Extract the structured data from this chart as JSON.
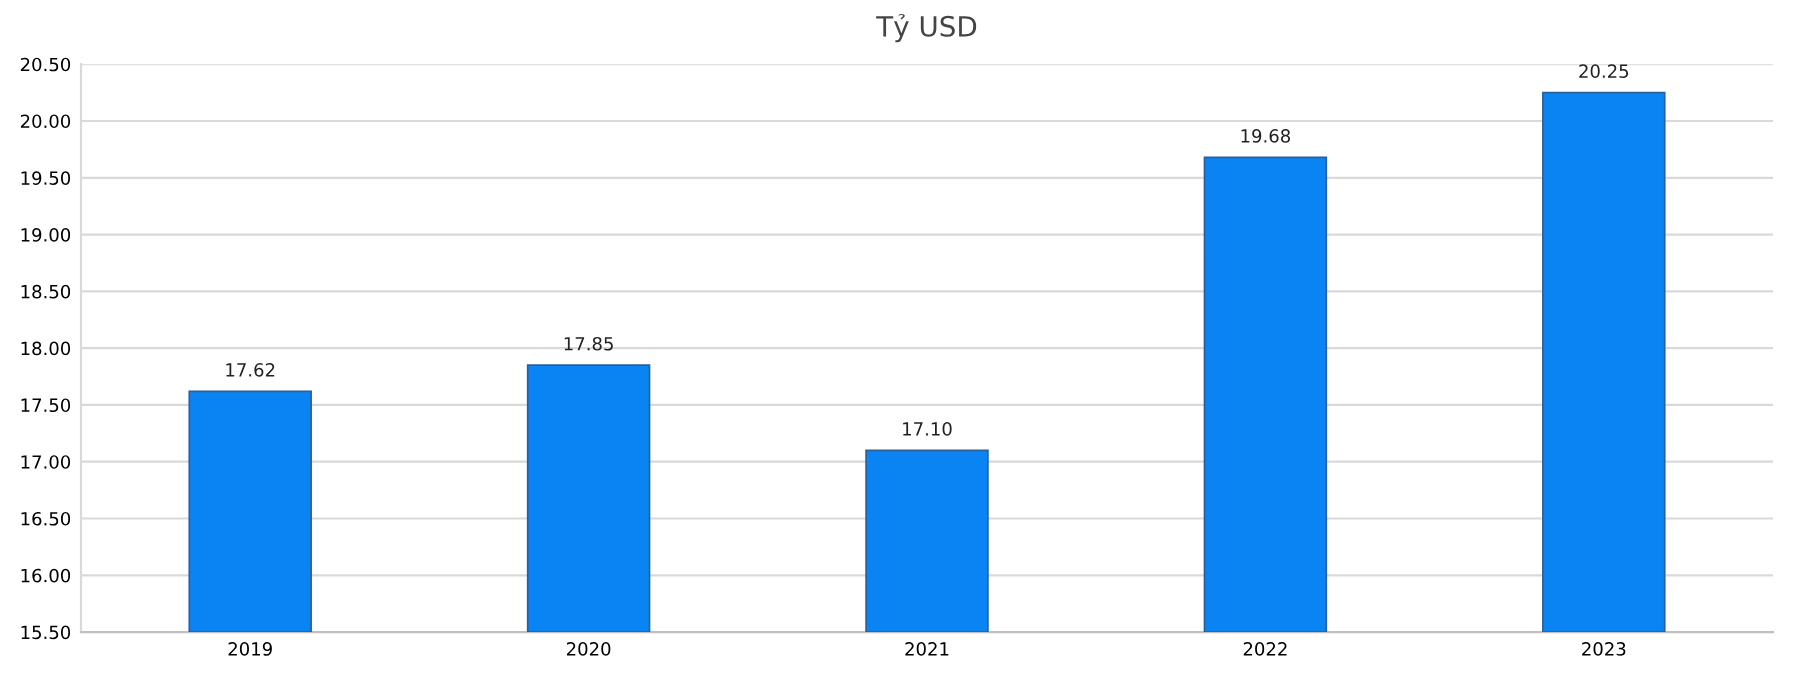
{
  "chart_data": {
    "type": "bar",
    "title": "Tỷ USD",
    "categories": [
      "2019",
      "2020",
      "2021",
      "2022",
      "2023"
    ],
    "values": [
      17.62,
      17.85,
      17.1,
      19.68,
      20.25
    ],
    "value_labels": [
      "17.62",
      "17.85",
      "17.10",
      "19.68",
      "20.25"
    ],
    "color": "#0b84f3",
    "ylim": [
      15.5,
      20.5
    ],
    "yticks": [
      {
        "value": 15.5,
        "label": "15.50"
      },
      {
        "value": 16,
        "label": "16.00"
      },
      {
        "value": 16.5,
        "label": "16.50"
      },
      {
        "value": 17,
        "label": "17.00"
      },
      {
        "value": 17.5,
        "label": "17.50"
      },
      {
        "value": 18,
        "label": "18.00"
      },
      {
        "value": 18.5,
        "label": "18.50"
      },
      {
        "value": 19,
        "label": "19.00"
      },
      {
        "value": 19.5,
        "label": "19.50"
      },
      {
        "value": 20,
        "label": "20.00"
      },
      {
        "value": 20.5,
        "label": "20.50"
      }
    ],
    "grid": "y"
  }
}
